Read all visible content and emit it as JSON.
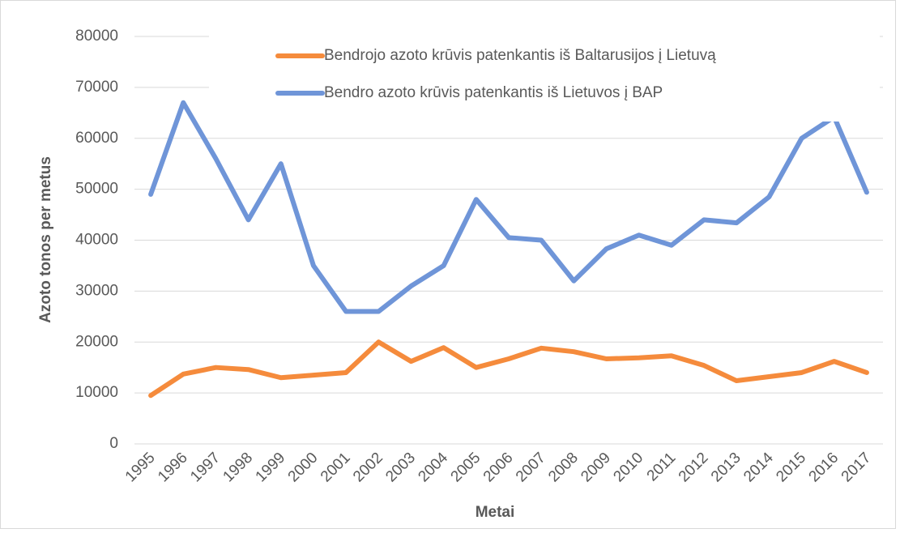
{
  "chart_data": {
    "type": "line",
    "x_label": "Metai",
    "y_label": "Azoto tonos per metus",
    "categories": [
      "1995",
      "1996",
      "1997",
      "1998",
      "1999",
      "2000",
      "2001",
      "2002",
      "2003",
      "2004",
      "2005",
      "2006",
      "2007",
      "2008",
      "2009",
      "2010",
      "2011",
      "2012",
      "2013",
      "2014",
      "2015",
      "2016",
      "2017"
    ],
    "series": [
      {
        "name": "Bendrojo azoto krūvis patenkantis iš Baltarusijos į Lietuvą",
        "color": "#f58b3c",
        "values": [
          9500,
          13700,
          15000,
          14600,
          13000,
          13500,
          14000,
          20000,
          16200,
          18900,
          15000,
          16700,
          18800,
          18100,
          16700,
          16900,
          17300,
          15400,
          12400,
          13200,
          14000,
          16200,
          14000
        ]
      },
      {
        "name": "Bendro azoto krūvis patenkantis iš Lietuvos į BAP",
        "color": "#6f95d8",
        "values": [
          49000,
          67000,
          56000,
          44000,
          55000,
          35000,
          26000,
          26000,
          31000,
          35000,
          48000,
          40500,
          40000,
          32000,
          38300,
          41000,
          39000,
          44000,
          43400,
          48500,
          60000,
          64200,
          49400
        ]
      }
    ],
    "ylim": [
      0,
      80000
    ],
    "yticks": [
      0,
      10000,
      20000,
      30000,
      40000,
      50000,
      60000,
      70000,
      80000
    ],
    "grid": true,
    "legend": "top"
  }
}
